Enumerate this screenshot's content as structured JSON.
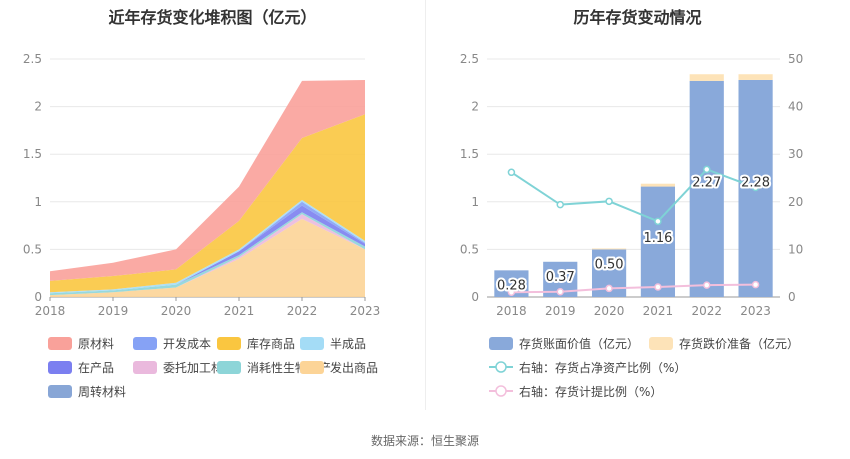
{
  "left_title": "近年存货变化堆积图（亿元）",
  "right_title": "历年存货变动情况",
  "source": "数据来源：恒生聚源",
  "colors": {
    "原材料": "#f9a19a",
    "开发成本": "#86a2f5",
    "库存商品": "#fac640",
    "半成品": "#a4dcf6",
    "在产品": "#7b7ff0",
    "委托加工材料": "#eab9dd",
    "消耗性生物资产": "#8dd5d8",
    "发出商品": "#fcd497",
    "周转材料": "#88a6d6",
    "存货账面价值": "#89a9da",
    "存货跌价准备": "#fde3b8",
    "存货占净资产比例": "#7fd3d6",
    "存货计提比例": "#f3bfdc"
  },
  "chart_data": [
    {
      "type": "area",
      "title": "近年存货变化堆积图（亿元）",
      "x": [
        "2018",
        "2019",
        "2020",
        "2021",
        "2022",
        "2023"
      ],
      "ylim": [
        0,
        2.5
      ],
      "yticks": [
        "0",
        "0.5",
        "1",
        "1.5",
        "2",
        "2.5"
      ],
      "grid": true,
      "legend_position": "bottom",
      "legend": [
        "原材料",
        "开发成本",
        "库存商品",
        "半成品",
        "在产品",
        "委托加工材料",
        "消耗性生物资产",
        "发出商品",
        "周转材料"
      ],
      "series": [
        {
          "name": "发出商品",
          "values": [
            0.02,
            0.05,
            0.1,
            0.4,
            0.82,
            0.5
          ]
        },
        {
          "name": "委托加工材料",
          "values": [
            0.0,
            0.0,
            0.0,
            0.02,
            0.05,
            0.0
          ]
        },
        {
          "name": "消耗性生物资产",
          "values": [
            0.02,
            0.02,
            0.03,
            0.02,
            0.02,
            0.03
          ]
        },
        {
          "name": "在产品",
          "values": [
            0.0,
            0.0,
            0.0,
            0.04,
            0.07,
            0.03
          ]
        },
        {
          "name": "开发成本",
          "values": [
            0.0,
            0.0,
            0.0,
            0.0,
            0.04,
            0.01
          ]
        },
        {
          "name": "半成品",
          "values": [
            0.01,
            0.01,
            0.02,
            0.02,
            0.02,
            0.02
          ]
        },
        {
          "name": "库存商品",
          "values": [
            0.12,
            0.14,
            0.14,
            0.3,
            0.65,
            1.33
          ]
        },
        {
          "name": "原材料",
          "values": [
            0.1,
            0.14,
            0.21,
            0.36,
            0.6,
            0.36
          ]
        }
      ]
    },
    {
      "type": "bar",
      "title": "历年存货变动情况",
      "categories": [
        "2018",
        "2019",
        "2020",
        "2021",
        "2022",
        "2023"
      ],
      "ylim": [
        0,
        2.5
      ],
      "yticks": [
        "0",
        "0.5",
        "1",
        "1.5",
        "2",
        "2.5"
      ],
      "y2lim": [
        0,
        50
      ],
      "y2ticks": [
        "0",
        "10",
        "20",
        "30",
        "40",
        "50"
      ],
      "grid": true,
      "legend_position": "bottom",
      "series": [
        {
          "name": "存货账面价值（亿元）",
          "type": "bar",
          "axis": "left",
          "values": [
            0.28,
            0.37,
            0.5,
            1.16,
            2.27,
            2.28
          ],
          "labels": [
            "0.28",
            "0.37",
            "0.50",
            "1.16",
            "2.27",
            "2.28"
          ]
        },
        {
          "name": "存货跌价准备（亿元）",
          "type": "bar",
          "axis": "left",
          "values": [
            0.0,
            0.0,
            0.01,
            0.03,
            0.07,
            0.06
          ]
        },
        {
          "name": "右轴：存货占净资产比例（%）",
          "type": "line",
          "axis": "right",
          "values": [
            26.2,
            19.4,
            20.1,
            15.9,
            26.8,
            23.0
          ]
        },
        {
          "name": "右轴：存货计提比例（%）",
          "type": "line",
          "axis": "right",
          "values": [
            1.0,
            1.1,
            1.8,
            2.1,
            2.5,
            2.6
          ]
        }
      ]
    }
  ]
}
